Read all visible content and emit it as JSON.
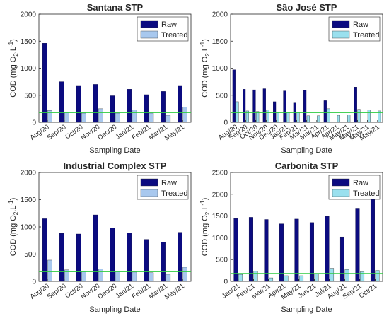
{
  "colors": {
    "raw": "#0b0b80",
    "treated_blue": "#a8c8ee",
    "treated_cyan": "#9ae0ee",
    "limit_line": "#2ecc40"
  },
  "chart_data": [
    {
      "type": "bar",
      "title": "Santana STP",
      "xlabel": "Sampling Date",
      "ylabel": "COD (mg O2.L-1)",
      "ylim": [
        0,
        2000
      ],
      "yticks": [
        0,
        500,
        1000,
        1500,
        2000
      ],
      "categories": [
        "Aug/20",
        "Sep/20",
        "Oct/20",
        "Nov/20",
        "Dec/20",
        "Jan/21",
        "Feb/21",
        "Mar/21",
        "May/21"
      ],
      "legend": "top-right",
      "reference_line": 180,
      "series": [
        {
          "name": "Raw",
          "color": "#0b0b80",
          "values": [
            1460,
            750,
            680,
            700,
            490,
            610,
            510,
            570,
            680
          ]
        },
        {
          "name": "Treated",
          "color": "#a8c8ee",
          "values": [
            220,
            190,
            170,
            250,
            170,
            230,
            170,
            130,
            280
          ]
        }
      ]
    },
    {
      "type": "bar",
      "title": "São José STP",
      "xlabel": "Sampling Date",
      "ylabel": "COD (mg O2.L-1)",
      "ylim": [
        0,
        2000
      ],
      "yticks": [
        0,
        500,
        1000,
        1500,
        2000
      ],
      "categories": [
        "Aug/20",
        "Sep/20",
        "Oct/20",
        "Nov/20",
        "Dec/20",
        "Jan/21",
        "Feb/21",
        "Mar/21",
        "Mar/21",
        "Apr/21",
        "Apr/21",
        "May/21",
        "May/21",
        "May/21",
        "May/21"
      ],
      "legend": "top-right",
      "reference_line": 180,
      "series": [
        {
          "name": "Raw",
          "color": "#0b0b80",
          "values": [
            970,
            610,
            600,
            620,
            380,
            580,
            370,
            590,
            0,
            400,
            0,
            0,
            650,
            0,
            0
          ]
        },
        {
          "name": "Treated",
          "color": "#9ae0ee",
          "values": [
            380,
            210,
            200,
            230,
            180,
            190,
            190,
            120,
            120,
            250,
            130,
            140,
            240,
            230,
            210
          ]
        }
      ]
    },
    {
      "type": "bar",
      "title": "Industrial Complex STP",
      "xlabel": "Sampling Date",
      "ylabel": "COD (mg O2.L-1)",
      "ylim": [
        0,
        2000
      ],
      "yticks": [
        0,
        500,
        1000,
        1500,
        2000
      ],
      "categories": [
        "Aug/20",
        "Sep/20",
        "Oct/20",
        "Nov/20",
        "Dec/20",
        "Jan/21",
        "Feb/21",
        "Mar/21",
        "May/21"
      ],
      "legend": "top-right",
      "reference_line": 180,
      "series": [
        {
          "name": "Raw",
          "color": "#0b0b80",
          "values": [
            1150,
            880,
            870,
            1220,
            980,
            890,
            770,
            720,
            900
          ]
        },
        {
          "name": "Treated",
          "color": "#a8c8ee",
          "values": [
            390,
            210,
            180,
            230,
            180,
            170,
            160,
            130,
            260
          ]
        }
      ]
    },
    {
      "type": "bar",
      "title": "Carbonita STP",
      "xlabel": "Sampling Date",
      "ylabel": "COD (mg O2.L-1)",
      "ylim": [
        0,
        2500
      ],
      "yticks": [
        0,
        500,
        1000,
        1500,
        2000,
        2500
      ],
      "categories": [
        "Jan/21",
        "Feb/21",
        "Mar/21",
        "Apr/21",
        "May/21",
        "Jun/21",
        "Jul/21",
        "Aug/21",
        "Sep/21",
        "Oct/21"
      ],
      "legend": "top-right",
      "reference_line": 180,
      "series": [
        {
          "name": "Raw",
          "color": "#0b0b80",
          "values": [
            1440,
            1470,
            1420,
            1320,
            1430,
            1350,
            1490,
            1020,
            1680,
            1950
          ]
        },
        {
          "name": "Treated",
          "color": "#9ae0ee",
          "values": [
            160,
            230,
            80,
            130,
            130,
            180,
            300,
            270,
            220,
            250
          ]
        }
      ]
    }
  ]
}
